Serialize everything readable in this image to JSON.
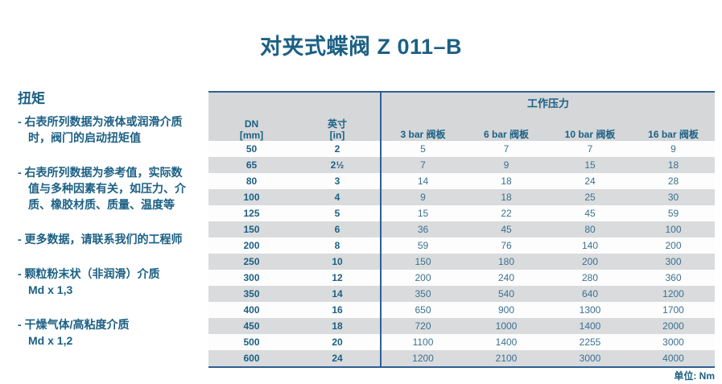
{
  "page": {
    "title": "对夹式蝶阀 Z 011–B",
    "unit_note": "单位: Nm"
  },
  "sidebar": {
    "heading": "扭矩",
    "notes": [
      "- 右表所列数据为液体或润滑介质\n时，阀门的启动扭矩值",
      "- 右表所列数据为参考值，实际数\n值与多种因素有关，如压力、介\n质、橡胶材质、质量、温度等",
      "- 更多数据，请联系我们的工程师",
      "- 颗粒粉末状（非润滑）介质\nMd x 1,3",
      "- 干燥气体/高粘度介质\nMd x 1,2"
    ]
  },
  "table": {
    "headers": {
      "dn": "DN\n[mm]",
      "inch": "英寸\n[in]",
      "pressure_group": "工作压力",
      "bars": [
        "3 bar 阀板",
        "6 bar 阀板",
        "10 bar 阀板",
        "16 bar 阀板"
      ]
    },
    "rows": [
      {
        "dn": "50",
        "inch": "2",
        "values": [
          "5",
          "7",
          "7",
          "9"
        ]
      },
      {
        "dn": "65",
        "inch": "2½",
        "values": [
          "7",
          "9",
          "15",
          "18"
        ]
      },
      {
        "dn": "80",
        "inch": "3",
        "values": [
          "14",
          "18",
          "24",
          "28"
        ]
      },
      {
        "dn": "100",
        "inch": "4",
        "values": [
          "9",
          "18",
          "25",
          "30"
        ]
      },
      {
        "dn": "125",
        "inch": "5",
        "values": [
          "15",
          "22",
          "45",
          "59"
        ]
      },
      {
        "dn": "150",
        "inch": "6",
        "values": [
          "36",
          "45",
          "80",
          "100"
        ]
      },
      {
        "dn": "200",
        "inch": "8",
        "values": [
          "59",
          "76",
          "140",
          "200"
        ]
      },
      {
        "dn": "250",
        "inch": "10",
        "values": [
          "150",
          "180",
          "200",
          "300"
        ]
      },
      {
        "dn": "300",
        "inch": "12",
        "values": [
          "200",
          "240",
          "280",
          "360"
        ]
      },
      {
        "dn": "350",
        "inch": "14",
        "values": [
          "350",
          "540",
          "640",
          "1200"
        ]
      },
      {
        "dn": "400",
        "inch": "16",
        "values": [
          "650",
          "900",
          "1300",
          "1700"
        ]
      },
      {
        "dn": "450",
        "inch": "18",
        "values": [
          "720",
          "1000",
          "1400",
          "2000"
        ]
      },
      {
        "dn": "500",
        "inch": "20",
        "values": [
          "1100",
          "1400",
          "2255",
          "3000"
        ]
      },
      {
        "dn": "600",
        "inch": "24",
        "values": [
          "1200",
          "2100",
          "3000",
          "4000"
        ]
      }
    ]
  },
  "colors": {
    "title_text": "#1c6084",
    "value_text": "#3a7190",
    "table_border": "#2e6093",
    "header_bg": "#d5d7d9",
    "row_alt_bg": "#d9dbdd"
  }
}
